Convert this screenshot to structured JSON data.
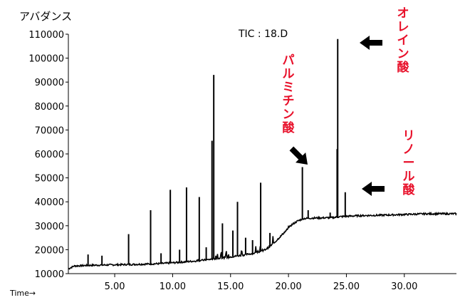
{
  "chart_data": {
    "type": "line",
    "title": "TIC : 18.D",
    "ylabel": "アバダンス",
    "xlabel": "Time→",
    "xlim": [
      1.0,
      34.5
    ],
    "ylim": [
      10000,
      110000
    ],
    "x_ticks": [
      5.0,
      10.0,
      15.0,
      20.0,
      25.0,
      30.0
    ],
    "x_tick_labels": [
      "5.00",
      "10.00",
      "15.00",
      "20.00",
      "25.00",
      "30.00"
    ],
    "y_ticks": [
      10000,
      20000,
      30000,
      40000,
      50000,
      60000,
      70000,
      80000,
      90000,
      100000,
      110000
    ],
    "y_tick_labels": [
      "10000",
      "20000",
      "30000",
      "40000",
      "50000",
      "60000",
      "70000",
      "80000",
      "90000",
      "100000",
      "110000"
    ],
    "grid": false,
    "accent_color": "#e8102a",
    "baseline": {
      "x": [
        1.0,
        1.5,
        3.0,
        5.0,
        7.0,
        9.0,
        10.5,
        12.0,
        13.0,
        14.0,
        15.0,
        16.0,
        17.0,
        17.8,
        18.3,
        18.8,
        19.3,
        19.8,
        20.3,
        20.8,
        21.3,
        22.0,
        23.0,
        23.8,
        24.5,
        25.2,
        26.0,
        28.0,
        30.0,
        32.0,
        34.5
      ],
      "y": [
        12000,
        13200,
        13500,
        13700,
        13900,
        14200,
        14700,
        15300,
        15800,
        16400,
        17000,
        17700,
        18500,
        19500,
        21000,
        23000,
        25500,
        28000,
        30500,
        32000,
        33000,
        33200,
        33300,
        33400,
        33800,
        34000,
        34200,
        34400,
        34700,
        35000,
        35000
      ]
    },
    "peaks": [
      {
        "x": 2.7,
        "y": 18000
      },
      {
        "x": 3.9,
        "y": 17500
      },
      {
        "x": 6.2,
        "y": 26500
      },
      {
        "x": 8.1,
        "y": 36500
      },
      {
        "x": 9.0,
        "y": 18500
      },
      {
        "x": 9.8,
        "y": 45000
      },
      {
        "x": 10.6,
        "y": 20000
      },
      {
        "x": 11.2,
        "y": 46000
      },
      {
        "x": 12.3,
        "y": 42000
      },
      {
        "x": 12.9,
        "y": 21000
      },
      {
        "x": 13.4,
        "y": 65500
      },
      {
        "x": 13.55,
        "y": 93000
      },
      {
        "x": 14.3,
        "y": 31000
      },
      {
        "x": 15.2,
        "y": 28000
      },
      {
        "x": 15.6,
        "y": 40000
      },
      {
        "x": 16.3,
        "y": 25000
      },
      {
        "x": 16.9,
        "y": 24000
      },
      {
        "x": 17.6,
        "y": 48000
      },
      {
        "x": 18.4,
        "y": 27000
      },
      {
        "x": 21.2,
        "y": 54500
      },
      {
        "x": 21.7,
        "y": 36500
      },
      {
        "x": 23.6,
        "y": 35500
      },
      {
        "x": 24.2,
        "y": 62000
      },
      {
        "x": 24.25,
        "y": 108000
      },
      {
        "x": 24.9,
        "y": 44000
      }
    ],
    "annotations": [
      {
        "label": "オレイン酸",
        "target_x": 24.25,
        "target_y": 108000
      },
      {
        "label": "パルミチン酸",
        "target_x": 21.2,
        "target_y": 54500
      },
      {
        "label": "リノール酸",
        "target_x": 24.9,
        "target_y": 44000
      }
    ]
  }
}
